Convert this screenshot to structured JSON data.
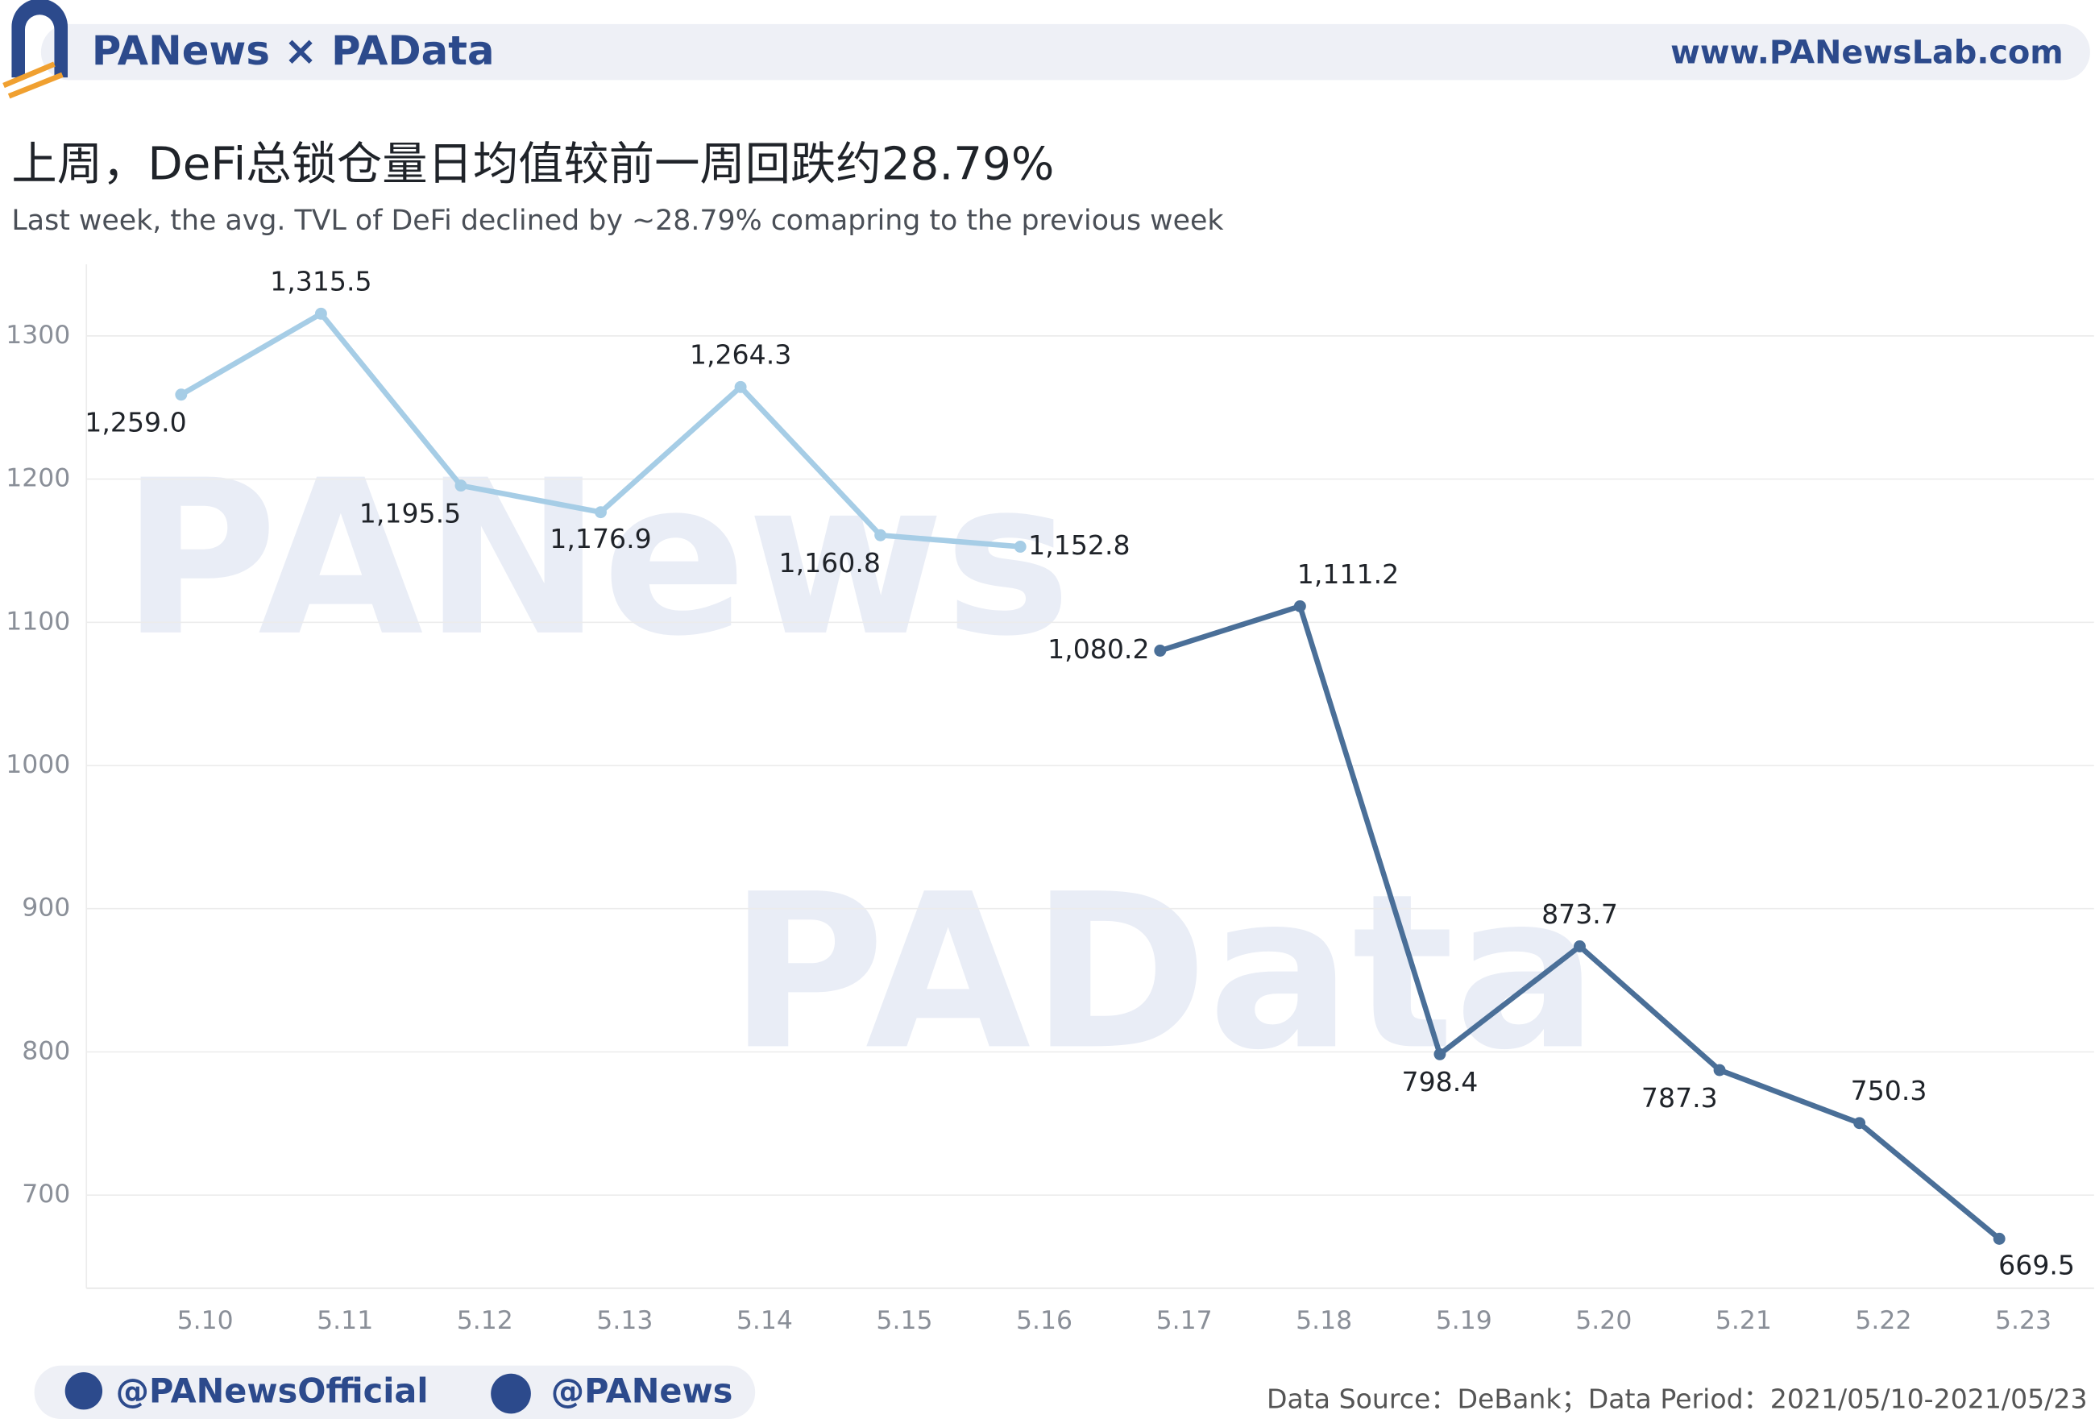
{
  "header": {
    "brand": "PANews × PAData",
    "site": "www.PANewsLab.com"
  },
  "footer": {
    "twitter": "@PANewsOfficial",
    "weibo": "@PANews",
    "source": "Data Source：DeBank；Data Period：2021/05/10-2021/05/23"
  },
  "watermarks": [
    "PANews",
    "PAData"
  ],
  "chart_data": {
    "type": "line",
    "title": "上周，DeFi总锁仓量日均值较前一周回跌约28.79%",
    "subtitle": "Last week, the avg. TVL of DeFi declined by ~28.79%  comapring to the previous week",
    "categories": [
      "5.10",
      "5.11",
      "5.12",
      "5.13",
      "5.14",
      "5.15",
      "5.16",
      "5.17",
      "5.18",
      "5.19",
      "5.20",
      "5.21",
      "5.22",
      "5.23"
    ],
    "series": [
      {
        "color": "#a6cde6",
        "values": [
          1259.0,
          1315.5,
          1195.5,
          1176.9,
          1264.3,
          1160.8,
          1152.8,
          null,
          null,
          null,
          null,
          null,
          null,
          null
        ],
        "value_labels": [
          "1,259.0",
          "1,315.5",
          "1,195.5",
          "1,176.9",
          "1,264.3",
          "1,160.8",
          "1,152.8",
          null,
          null,
          null,
          null,
          null,
          null,
          null
        ]
      },
      {
        "color": "#4a6f98",
        "values": [
          null,
          null,
          null,
          null,
          null,
          null,
          null,
          1080.2,
          1111.2,
          798.4,
          873.7,
          787.3,
          750.3,
          669.5
        ],
        "value_labels": [
          null,
          null,
          null,
          null,
          null,
          null,
          null,
          "1,080.2",
          "1,111.2",
          "798.4",
          "873.7",
          "787.3",
          "750.3",
          "669.5"
        ]
      }
    ],
    "ylim": [
      635,
      1350
    ],
    "yticks": [
      700,
      800,
      900,
      1000,
      1100,
      1200,
      1300
    ],
    "grid": true
  }
}
